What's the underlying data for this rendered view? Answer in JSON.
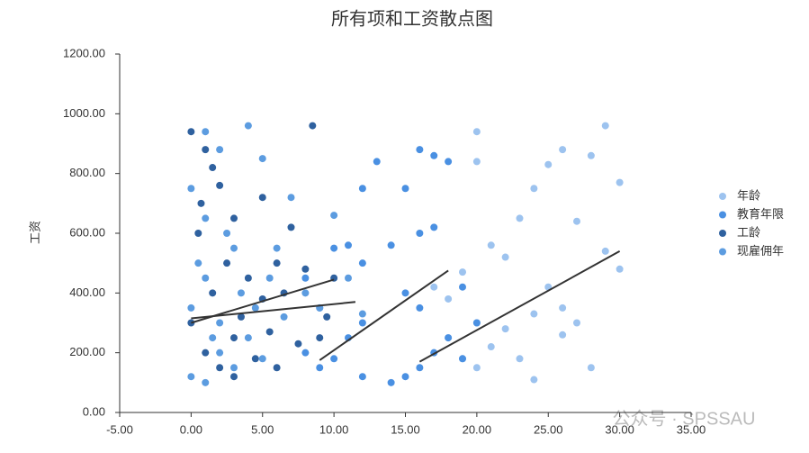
{
  "chart_data": {
    "type": "scatter",
    "title": "所有项和工资散点图",
    "y_label": "工资",
    "watermark": "公众号 · SPSSAU",
    "xlim": [
      -5,
      35
    ],
    "xticks": [
      {
        "value": -5,
        "label": "-5.00"
      },
      {
        "value": 0,
        "label": "0.00"
      },
      {
        "value": 5,
        "label": "5.00"
      },
      {
        "value": 10,
        "label": "10.00"
      },
      {
        "value": 15,
        "label": "15.00"
      },
      {
        "value": 20,
        "label": "20.00"
      },
      {
        "value": 25,
        "label": "25.00"
      },
      {
        "value": 30,
        "label": "30.00"
      },
      {
        "value": 35,
        "label": "35.00"
      }
    ],
    "ylim": [
      0,
      1200
    ],
    "yticks": [
      {
        "value": 0,
        "label": "0.00"
      },
      {
        "value": 200,
        "label": "200.00"
      },
      {
        "value": 400,
        "label": "400.00"
      },
      {
        "value": 600,
        "label": "600.00"
      },
      {
        "value": 800,
        "label": "800.00"
      },
      {
        "value": 1000,
        "label": "1000.00"
      },
      {
        "value": 1200,
        "label": "1200.00"
      }
    ],
    "legend": "right",
    "series": [
      {
        "name": "年龄",
        "color": "#9dc3ef",
        "x": [
          17,
          17,
          18,
          18,
          19,
          19,
          20,
          20,
          20,
          21,
          21,
          22,
          22,
          23,
          23,
          24,
          24,
          25,
          25,
          26,
          26,
          27,
          27,
          28,
          28,
          29,
          29,
          30,
          30,
          20,
          24,
          26
        ],
        "values": [
          200,
          420,
          250,
          380,
          180,
          470,
          150,
          300,
          940,
          220,
          560,
          280,
          520,
          180,
          650,
          330,
          750,
          420,
          830,
          350,
          880,
          300,
          640,
          150,
          860,
          540,
          960,
          480,
          770,
          840,
          110,
          260
        ],
        "trend": {
          "x": [
            16,
            30
          ],
          "y": [
            170,
            540
          ]
        }
      },
      {
        "name": "教育年限",
        "color": "#4a90e2",
        "x": [
          8,
          8,
          9,
          9,
          10,
          10,
          11,
          11,
          12,
          12,
          12,
          12,
          13,
          14,
          14,
          15,
          15,
          15,
          16,
          16,
          16,
          16,
          17,
          17,
          17,
          18,
          18,
          19,
          19,
          20
        ],
        "values": [
          200,
          450,
          150,
          350,
          180,
          550,
          250,
          560,
          120,
          300,
          500,
          750,
          840,
          100,
          560,
          120,
          400,
          750,
          150,
          350,
          600,
          880,
          200,
          620,
          860,
          250,
          840,
          180,
          420,
          300
        ],
        "trend": {
          "x": [
            9,
            18
          ],
          "y": [
            175,
            475
          ]
        }
      },
      {
        "name": "工龄",
        "color": "#2f619f",
        "x": [
          0,
          0,
          0.5,
          1,
          1,
          1.5,
          1.5,
          2,
          2,
          2.5,
          3,
          3,
          3.5,
          4,
          4.5,
          5,
          5,
          5.5,
          6,
          6,
          6.5,
          7,
          7.5,
          8,
          8.5,
          9,
          9.5,
          10,
          3,
          0.7
        ],
        "values": [
          940,
          300,
          600,
          880,
          200,
          820,
          400,
          150,
          760,
          500,
          250,
          650,
          320,
          450,
          180,
          720,
          380,
          270,
          150,
          500,
          400,
          620,
          230,
          480,
          960,
          250,
          320,
          450,
          120,
          700
        ],
        "trend": {
          "x": [
            0,
            10
          ],
          "y": [
            300,
            445
          ]
        }
      },
      {
        "name": "现雇佣年",
        "color": "#5c9ce0",
        "x": [
          0,
          0,
          0,
          0.5,
          1,
          1,
          1,
          1.5,
          2,
          2,
          2.5,
          3,
          3,
          3.5,
          4,
          4,
          4.5,
          5,
          5,
          5.5,
          6,
          6.5,
          7,
          8,
          9,
          10,
          11,
          12,
          1,
          2
        ],
        "values": [
          120,
          350,
          750,
          500,
          100,
          450,
          940,
          250,
          300,
          880,
          600,
          150,
          550,
          400,
          960,
          250,
          350,
          850,
          180,
          450,
          550,
          320,
          720,
          400,
          350,
          660,
          450,
          330,
          650,
          200
        ],
        "trend": {
          "x": [
            0,
            11.5
          ],
          "y": [
            315,
            370
          ]
        }
      }
    ]
  }
}
